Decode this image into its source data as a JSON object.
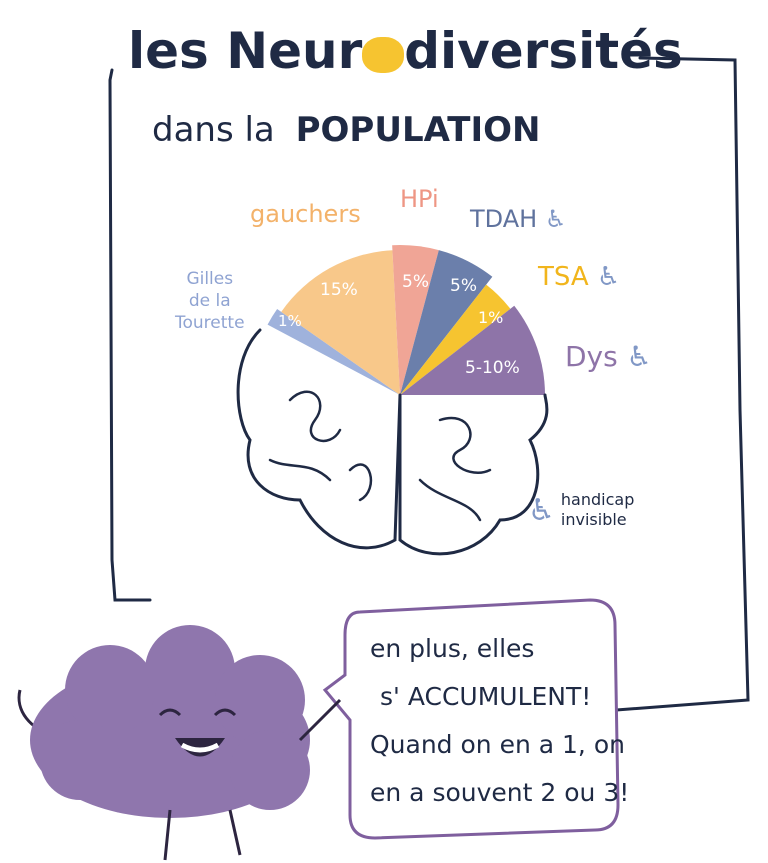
{
  "title": {
    "part1": "les Neur",
    "part2": "diversités",
    "subtitle_a": "dans la",
    "subtitle_b": "POPULATION"
  },
  "colors": {
    "ink": "#1f2a44",
    "gauchers": "#f8c88a",
    "hpi": "#f0a596",
    "tdah": "#6b7fab",
    "tsa": "#f6c430",
    "dys": "#8e74a8",
    "tourette": "#9fb2dc",
    "mascot": "#8f76ad"
  },
  "slices": [
    {
      "label": "Gilles de la Tourette",
      "label_lines": [
        "Gilles",
        "de la",
        "Tourette"
      ],
      "value_text": "1%",
      "color": "#9fb2dc",
      "handicap": false
    },
    {
      "label": "gauchers",
      "value_text": "15%",
      "color": "#f8c88a",
      "handicap": false
    },
    {
      "label": "HPi",
      "value_text": "5%",
      "color": "#f0a596",
      "handicap": false
    },
    {
      "label": "TDAH",
      "value_text": "5%",
      "color": "#6b7fab",
      "handicap": true
    },
    {
      "label": "TSA",
      "value_text": "1%",
      "color": "#f6c430",
      "handicap": true
    },
    {
      "label": "Dys",
      "value_text": "5-10%",
      "color": "#8e74a8",
      "handicap": true
    }
  ],
  "legend": {
    "icon": "wheelchair-icon",
    "line1": "handicap",
    "line2": "invisible"
  },
  "bubble": {
    "lines": [
      "en plus, elles",
      "s' ACCUMULENT!",
      "Quand on en a 1, on",
      "en a souvent 2 ou 3!"
    ]
  }
}
